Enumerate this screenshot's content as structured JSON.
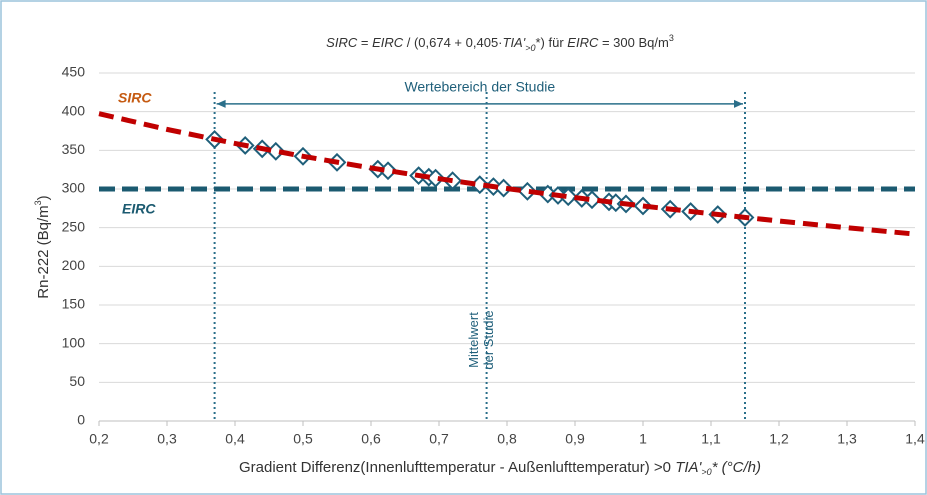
{
  "chart_data": {
    "type": "scatter",
    "title_parts": [
      "SIRC",
      " = ",
      "EIRC",
      " / (0,674 + 0,405·",
      "TIA'",
      ">0",
      "*)    für ",
      "EIRC",
      " = 300 Bq/m",
      "3"
    ],
    "y_label_parts": [
      "Rn-222 (Bq/m",
      "3",
      ")"
    ],
    "x_label_parts": [
      "Gradient Differenz(Innenlufttemperatur - Außenlufttemperatur) >0    ",
      "TIA'",
      ">0",
      "* (°C/h)"
    ],
    "xlim": [
      0.2,
      1.4
    ],
    "ylim": [
      0,
      450
    ],
    "xticks": [
      {
        "value": 0.2,
        "label": "0,2"
      },
      {
        "value": 0.3,
        "label": "0,3"
      },
      {
        "value": 0.4,
        "label": "0,4"
      },
      {
        "value": 0.5,
        "label": "0,5"
      },
      {
        "value": 0.6,
        "label": "0,6"
      },
      {
        "value": 0.7,
        "label": "0,7"
      },
      {
        "value": 0.8,
        "label": "0,8"
      },
      {
        "value": 0.9,
        "label": "0,9"
      },
      1,
      {
        "value": 1.1,
        "label": "1,1"
      },
      {
        "value": 1.2,
        "label": "1,2"
      },
      {
        "value": 1.3,
        "label": "1,3"
      },
      {
        "value": 1.4,
        "label": "1,4"
      }
    ],
    "yticks": [
      0,
      50,
      100,
      150,
      200,
      250,
      300,
      350,
      400,
      450
    ],
    "grid": true,
    "curve": {
      "name": "SIRC",
      "color": "#c00000",
      "x": [
        0.2,
        0.3,
        0.4,
        0.5,
        0.6,
        0.7,
        0.8,
        0.9,
        1.0,
        1.1,
        1.2,
        1.3,
        1.4
      ],
      "values": [
        397.4,
        377.1,
        358.9,
        342.3,
        327.2,
        313.3,
        300.6,
        288.9,
        278.0,
        268.0,
        258.6,
        249.9,
        241.7
      ]
    },
    "hline": {
      "name": "EIRC",
      "color": "#1b5a70",
      "value": 300
    },
    "points": {
      "color": "#1f5f7a",
      "x": [
        0.37,
        0.415,
        0.44,
        0.46,
        0.5,
        0.55,
        0.61,
        0.625,
        0.67,
        0.685,
        0.695,
        0.72,
        0.76,
        0.78,
        0.795,
        0.83,
        0.86,
        0.875,
        0.89,
        0.91,
        0.925,
        0.95,
        0.96,
        0.975,
        1.0,
        1.04,
        1.07,
        1.11,
        1.15
      ],
      "values": [
        364.1,
        356.3,
        352.0,
        348.7,
        342.3,
        334.5,
        325.7,
        323.6,
        317.3,
        315.3,
        314.0,
        310.7,
        305.6,
        303.1,
        301.2,
        297.0,
        293.5,
        291.7,
        290.0,
        287.8,
        286.1,
        283.4,
        282.3,
        280.7,
        278.0,
        273.9,
        270.9,
        267.0,
        263.2
      ]
    },
    "range": {
      "x": [
        0.37,
        1.15
      ],
      "y": 410,
      "label": "Wertebereich der Studie"
    },
    "mean": {
      "x": 0.77,
      "label": [
        "Mittelwert",
        "der Studie"
      ]
    }
  }
}
